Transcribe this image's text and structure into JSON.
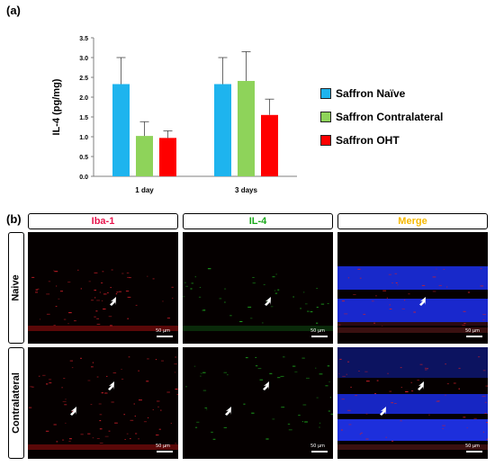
{
  "panel_labels": {
    "a": "(a)",
    "b": "(b)"
  },
  "chart_data": {
    "type": "bar",
    "categories": [
      "1 day",
      "3 days"
    ],
    "ylabel": "IL-4 (pg/mg)",
    "xlabel": "",
    "ylim": [
      0,
      3.5
    ],
    "yticks": [
      "0.0",
      "0.5",
      "1.0",
      "1.5",
      "2.0",
      "2.5",
      "3.0",
      "3.5"
    ],
    "grid": false,
    "legend_position": "right",
    "series": [
      {
        "name": "Saffron Naïve",
        "color": "#1eb4ee",
        "values": [
          2.33,
          2.33
        ],
        "errors": [
          0.67,
          0.67
        ]
      },
      {
        "name": "Saffron Contralateral",
        "color": "#8ed35a",
        "values": [
          1.02,
          2.41
        ],
        "errors": [
          0.36,
          0.74
        ]
      },
      {
        "name": "Saffron OHT",
        "color": "#ff0000",
        "values": [
          0.97,
          1.55
        ],
        "errors": [
          0.18,
          0.4
        ]
      }
    ]
  },
  "micrographs": {
    "columns": [
      {
        "label": "Iba-1",
        "color": "#e8174e"
      },
      {
        "label": "IL-4",
        "color": "#1aa81a"
      },
      {
        "label": "Merge",
        "color": "#f5b800"
      }
    ],
    "rows": [
      {
        "label": "Naive"
      },
      {
        "label": "Contralateral"
      }
    ],
    "scale_bar": "50 µm"
  }
}
